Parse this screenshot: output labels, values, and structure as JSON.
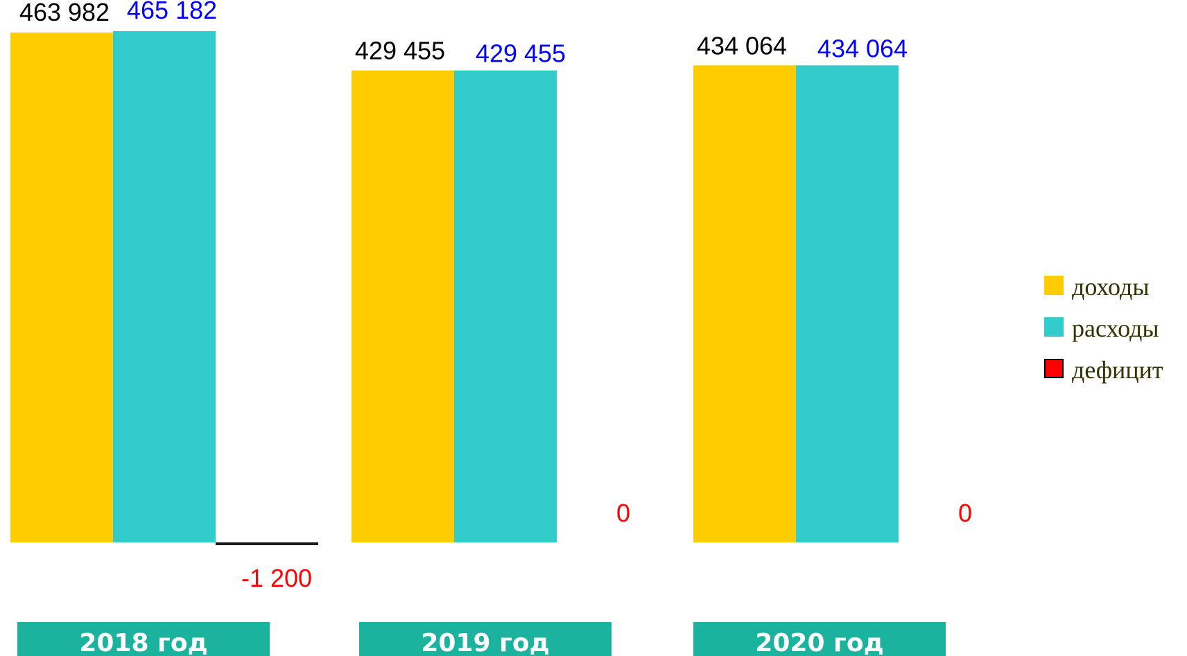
{
  "chart_data": {
    "type": "bar",
    "categories": [
      "2018 год",
      "2019 год",
      "2020 год"
    ],
    "series": [
      {
        "name": "доходы",
        "color": "#FFCC00",
        "label_color": "#000000",
        "values": [
          463982,
          429455,
          434064
        ],
        "labels": [
          "463 982",
          "429 455",
          "434 064"
        ]
      },
      {
        "name": "расходы",
        "color": "#33CCCC",
        "label_color": "#0000FF",
        "values": [
          465182,
          429455,
          434064
        ],
        "labels": [
          "465 182",
          "429 455",
          "434 064"
        ]
      },
      {
        "name": "дефицит",
        "color": "#FF0000",
        "label_color": "#FF0000",
        "values": [
          -1200,
          0,
          0
        ],
        "labels": [
          "-1 200",
          "0",
          "0"
        ]
      }
    ],
    "category_box_color": "#1BB39E",
    "legend_position": "right",
    "grid": false
  }
}
